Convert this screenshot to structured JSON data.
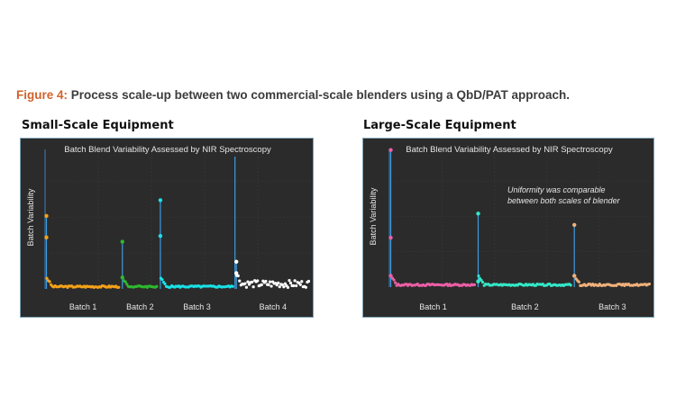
{
  "caption": {
    "label": "Figure 4:",
    "text": "Process scale-up between two commercial-scale blenders using a QbD/PAT approach."
  },
  "colors": {
    "background": "#2b2b2b",
    "frame": "#7fa6b8",
    "accent": "#d0632c"
  },
  "panels": [
    {
      "heading": "Small-Scale Equipment"
    },
    {
      "heading": "Large-Scale Equipment"
    }
  ],
  "chart_data": [
    {
      "type": "scatter",
      "title": "Batch Blend Variability Assessed by NIR Spectroscopy",
      "ylabel": "Batch Variability",
      "xlabel": "",
      "grid": true,
      "ylim": [
        0,
        1
      ],
      "batches": [
        {
          "name": "Batch 1",
          "color": "#f4a11a",
          "start": 0,
          "end": 80,
          "spikes": [
            [
              0.51,
              0.36
            ]
          ]
        },
        {
          "name": "Batch 2",
          "color": "#2eb82e",
          "start": 80,
          "end": 120,
          "spikes": [
            [
              0.33,
              0.08
            ]
          ]
        },
        {
          "name": "Batch 3",
          "color": "#19e1e6",
          "start": 120,
          "end": 200,
          "spikes": [
            [
              0.62,
              0.37
            ]
          ]
        },
        {
          "name": "Batch 4",
          "color": "#ffffff",
          "start": 200,
          "end": 280,
          "spikes": [
            [
              0.19,
              0.11
            ]
          ]
        }
      ],
      "tall_marker_at": 200
    },
    {
      "type": "scatter",
      "title": "Batch Blend Variability Assessed by NIR Spectroscopy",
      "ylabel": "Batch Variability",
      "xlabel": "",
      "grid": true,
      "ylim": [
        0,
        1
      ],
      "annotation": [
        "Uniformity was comparable",
        "between both scales of blender"
      ],
      "batches": [
        {
          "name": "Batch 1",
          "color": "#ec5fa6",
          "start": 0,
          "end": 100,
          "spikes": [
            [
              0.97,
              0.35,
              0.08
            ]
          ]
        },
        {
          "name": "Batch 2",
          "color": "#33e8c8",
          "start": 100,
          "end": 210,
          "spikes": [
            [
              0.52,
              0.04
            ]
          ]
        },
        {
          "name": "Batch 3",
          "color": "#f0b07a",
          "start": 210,
          "end": 300,
          "spikes": [
            [
              0.44,
              0.08
            ]
          ]
        }
      ]
    }
  ]
}
